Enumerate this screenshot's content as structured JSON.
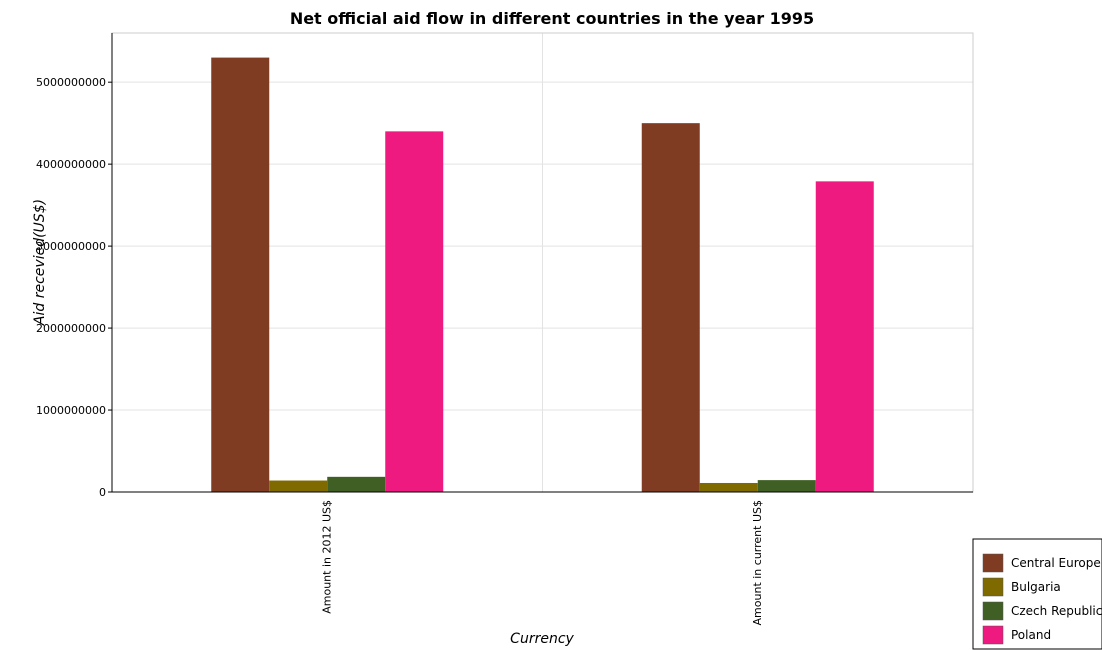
{
  "chart_data": {
    "type": "bar",
    "title": "Net official aid flow in different countries in the year 1995",
    "xlabel": "Currency",
    "ylabel": "Aid recevied(US$)",
    "categories": [
      "Amount in 2012 US$",
      "Amount in current US$"
    ],
    "series": [
      {
        "name": "Central Europe",
        "color": "#7f3c23",
        "values": [
          5300000000,
          4500000000
        ]
      },
      {
        "name": "Bulgaria",
        "color": "#7f6a00",
        "values": [
          140000000,
          110000000
        ]
      },
      {
        "name": "Czech Republic",
        "color": "#3f5f25",
        "values": [
          185000000,
          145000000
        ]
      },
      {
        "name": "Poland",
        "color": "#ef1a7f",
        "values": [
          4400000000,
          3790000000
        ]
      }
    ],
    "yticks": [
      "0",
      "1000000000",
      "2000000000",
      "3000000000",
      "4000000000",
      "5000000000"
    ],
    "ylim": [
      0,
      5600000000
    ],
    "grid": true,
    "legend_position": "bottom-right"
  }
}
